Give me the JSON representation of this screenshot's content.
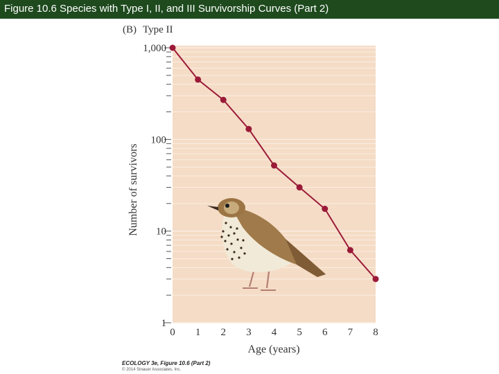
{
  "slide": {
    "title": "Figure 10.6  Species with Type I, II, and III Survivorship Curves (Part 2)"
  },
  "credits": {
    "line1": "ECOLOGY 3e, Figure 10.6 (Part 2)",
    "line2": "© 2014 Sinauer Associates, Inc."
  },
  "colors": {
    "plot_background": "#f5dcc6",
    "gridline": "#fbeee2",
    "series": "#9a1a38"
  },
  "chart_data": {
    "type": "line",
    "panel_label": "(B)",
    "title": "Type II",
    "xlabel": "Age (years)",
    "ylabel": "Number of survivors",
    "x_ticks": [
      "0",
      "1",
      "2",
      "3",
      "4",
      "5",
      "6",
      "7",
      "8"
    ],
    "y_ticks": [
      "1",
      "10",
      "100",
      "1,000"
    ],
    "y_scale": "log",
    "xlim": [
      0,
      8
    ],
    "ylim": [
      1,
      1000
    ],
    "grid": true,
    "legend": "none",
    "illustration": "thrush-bird",
    "series": [
      {
        "x": [
          0,
          1,
          2,
          3,
          4,
          5,
          6,
          7,
          8
        ],
        "y": [
          1000,
          450,
          270,
          130,
          52,
          30,
          17.5,
          6.2,
          3
        ]
      }
    ]
  }
}
